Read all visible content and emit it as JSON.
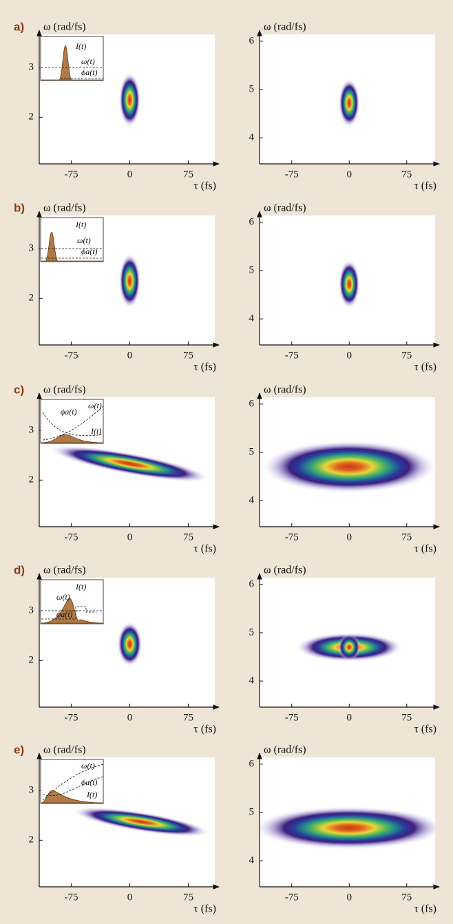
{
  "chart_data": [
    {
      "type": "heatmap",
      "panel_label": "a)",
      "ylabel": "ω (rad/fs)",
      "xlabel": "τ (fs)",
      "xlim": [
        -116,
        109
      ],
      "ylim": [
        1.06,
        3.67
      ],
      "xticks": [
        -75,
        0,
        75
      ],
      "yticks": [
        2,
        3
      ],
      "inset": [
        "I(t)",
        "ω(t)",
        "ϕa(t)"
      ],
      "blobs": [
        {
          "x": 0,
          "y": 2.35,
          "rx": 14,
          "ry": 0.55,
          "tilt": 0
        }
      ]
    },
    {
      "type": "heatmap",
      "ylabel": "ω (rad/fs)",
      "xlabel": "τ (fs)",
      "xlim": [
        -117,
        112
      ],
      "ylim": [
        3.46,
        6.14
      ],
      "xticks": [
        -75,
        0,
        75
      ],
      "yticks": [
        4,
        5,
        6
      ],
      "blobs": [
        {
          "x": 0,
          "y": 4.72,
          "rx": 14,
          "ry": 0.5,
          "tilt": 0
        }
      ]
    },
    {
      "type": "heatmap",
      "panel_label": "b)",
      "ylabel": "ω (rad/fs)",
      "xlabel": "τ (fs)",
      "xlim": [
        -116,
        109
      ],
      "ylim": [
        1.06,
        3.67
      ],
      "xticks": [
        -75,
        0,
        75
      ],
      "yticks": [
        2,
        3
      ],
      "inset": [
        "I(t)",
        "ω(t)",
        "ϕa(t)"
      ],
      "blobs": [
        {
          "x": 0,
          "y": 2.35,
          "rx": 14,
          "ry": 0.55,
          "tilt": 0
        }
      ]
    },
    {
      "type": "heatmap",
      "ylabel": "ω (rad/fs)",
      "xlabel": "τ (fs)",
      "xlim": [
        -117,
        112
      ],
      "ylim": [
        3.46,
        6.14
      ],
      "xticks": [
        -75,
        0,
        75
      ],
      "yticks": [
        4,
        5,
        6
      ],
      "blobs": [
        {
          "x": 0,
          "y": 4.72,
          "rx": 14,
          "ry": 0.5,
          "tilt": 0
        }
      ]
    },
    {
      "type": "heatmap",
      "panel_label": "c)",
      "ylabel": "ω (rad/fs)",
      "xlabel": "τ (fs)",
      "xlim": [
        -116,
        109
      ],
      "ylim": [
        1.06,
        3.67
      ],
      "xticks": [
        -75,
        0,
        75
      ],
      "yticks": [
        2,
        3
      ],
      "inset": [
        "ϕa(t)",
        "ω(t)",
        "I(t)"
      ],
      "blobs": [
        {
          "x": 0,
          "y": 2.33,
          "rx": 105,
          "ry": 0.22,
          "tilt": 0.0029
        }
      ]
    },
    {
      "type": "heatmap",
      "ylabel": "ω (rad/fs)",
      "xlabel": "τ (fs)",
      "xlim": [
        -117,
        112
      ],
      "ylim": [
        3.46,
        6.14
      ],
      "xticks": [
        -75,
        0,
        75
      ],
      "yticks": [
        4,
        5,
        6
      ],
      "blobs": [
        {
          "x": 0,
          "y": 4.7,
          "rx": 115,
          "ry": 0.55,
          "tilt": 0
        }
      ]
    },
    {
      "type": "heatmap",
      "panel_label": "d)",
      "ylabel": "ω (rad/fs)",
      "xlabel": "τ (fs)",
      "xlim": [
        -116,
        109
      ],
      "ylim": [
        1.06,
        3.67
      ],
      "xticks": [
        -75,
        0,
        75
      ],
      "yticks": [
        2,
        3
      ],
      "inset": [
        "I(t)",
        "ω(t)",
        "ϕa(t)"
      ],
      "blobs": [
        {
          "x": 0,
          "y": 2.33,
          "rx": 16,
          "ry": 0.45,
          "tilt": 0
        }
      ]
    },
    {
      "type": "heatmap",
      "ylabel": "ω (rad/fs)",
      "xlabel": "τ (fs)",
      "xlim": [
        -117,
        112
      ],
      "ylim": [
        3.46,
        6.14
      ],
      "xticks": [
        -75,
        0,
        75
      ],
      "yticks": [
        4,
        5,
        6
      ],
      "blobs": [
        {
          "x": 0,
          "y": 4.7,
          "rx": 70,
          "ry": 0.3,
          "tilt": 0
        },
        {
          "x": 0,
          "y": 4.7,
          "rx": 15,
          "ry": 0.28,
          "tilt": 0
        }
      ]
    },
    {
      "type": "heatmap",
      "panel_label": "e)",
      "ylabel": "ω (rad/fs)",
      "xlabel": "τ (fs)",
      "xlim": [
        -116,
        109
      ],
      "ylim": [
        1.06,
        3.67
      ],
      "xticks": [
        -75,
        0,
        75
      ],
      "yticks": [
        2,
        3
      ],
      "inset": [
        "ω(t)",
        "ϕa(t)",
        "I(t)"
      ],
      "blobs": [
        {
          "x": 15,
          "y": 2.37,
          "rx": 90,
          "ry": 0.2,
          "tilt": 0.0025
        }
      ]
    },
    {
      "type": "heatmap",
      "ylabel": "ω (rad/fs)",
      "xlabel": "τ (fs)",
      "xlim": [
        -117,
        112
      ],
      "ylim": [
        3.46,
        6.14
      ],
      "xticks": [
        -75,
        0,
        75
      ],
      "yticks": [
        4,
        5,
        6
      ],
      "blobs": [
        {
          "x": 0,
          "y": 4.68,
          "rx": 125,
          "ry": 0.45,
          "tilt": 0
        }
      ]
    }
  ]
}
